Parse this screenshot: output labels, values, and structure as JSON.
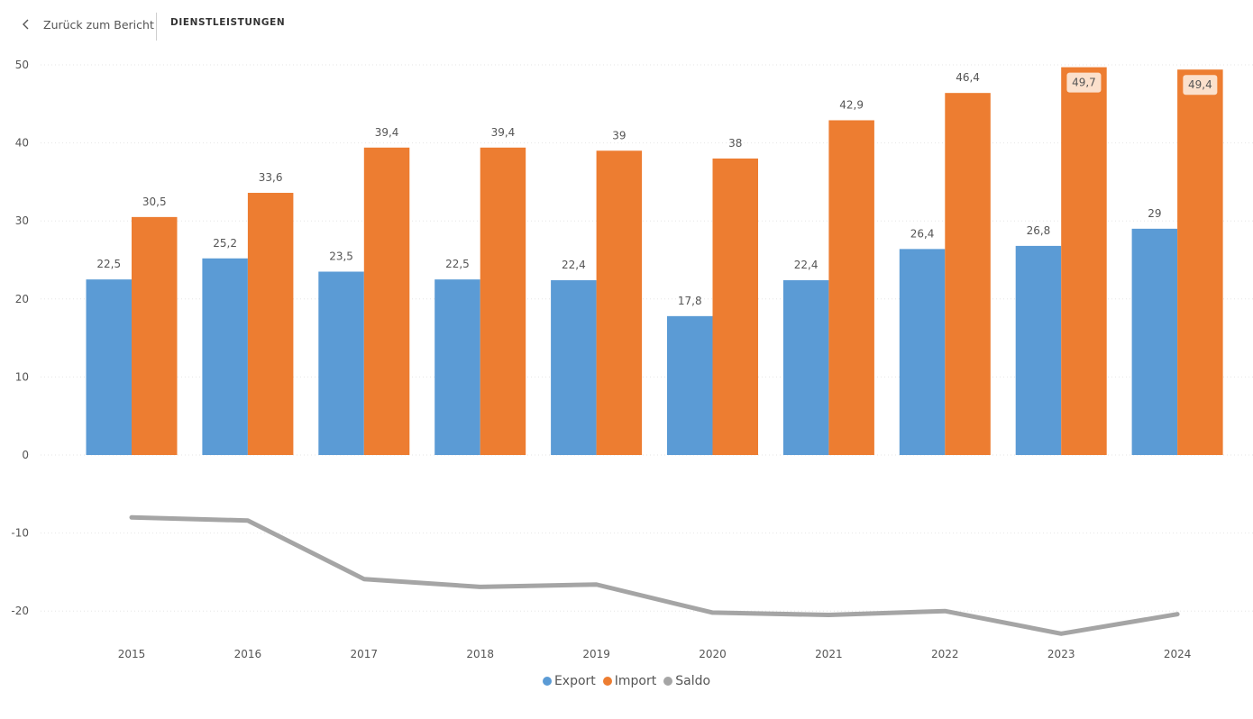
{
  "header": {
    "back_label": "Zurück zum Bericht",
    "title": "DIENSTLEISTUNGEN"
  },
  "chart_data": {
    "type": "bar",
    "title": "",
    "xlabel": "",
    "ylabel": "",
    "ylim": [
      -25,
      50
    ],
    "yticks": [
      50,
      40,
      30,
      20,
      10,
      0,
      -10,
      -20
    ],
    "categories": [
      "2015",
      "2016",
      "2017",
      "2018",
      "2019",
      "2020",
      "2021",
      "2022",
      "2023",
      "2024"
    ],
    "series": [
      {
        "name": "Export",
        "kind": "bar",
        "color": "#5B9BD5",
        "values": [
          22.5,
          25.2,
          23.5,
          22.5,
          22.4,
          17.8,
          22.4,
          26.4,
          26.8,
          29
        ],
        "labels": [
          "22,5",
          "25,2",
          "23,5",
          "22,5",
          "22,4",
          "17,8",
          "22,4",
          "26,4",
          "26,8",
          "29"
        ]
      },
      {
        "name": "Import",
        "kind": "bar",
        "color": "#ED7D31",
        "values": [
          30.5,
          33.6,
          39.4,
          39.4,
          39,
          38,
          42.9,
          46.4,
          49.7,
          49.4
        ],
        "labels": [
          "30,5",
          "33,6",
          "39,4",
          "39,4",
          "39",
          "38",
          "42,9",
          "46,4",
          "49,7",
          "49,4"
        ]
      },
      {
        "name": "Saldo",
        "kind": "line",
        "color": "#A5A5A5",
        "values": [
          -8.0,
          -8.4,
          -15.9,
          -16.9,
          -16.6,
          -20.2,
          -20.5,
          -20.0,
          -22.9,
          -20.4
        ]
      }
    ],
    "grid": true,
    "legend": "bottom-center"
  }
}
